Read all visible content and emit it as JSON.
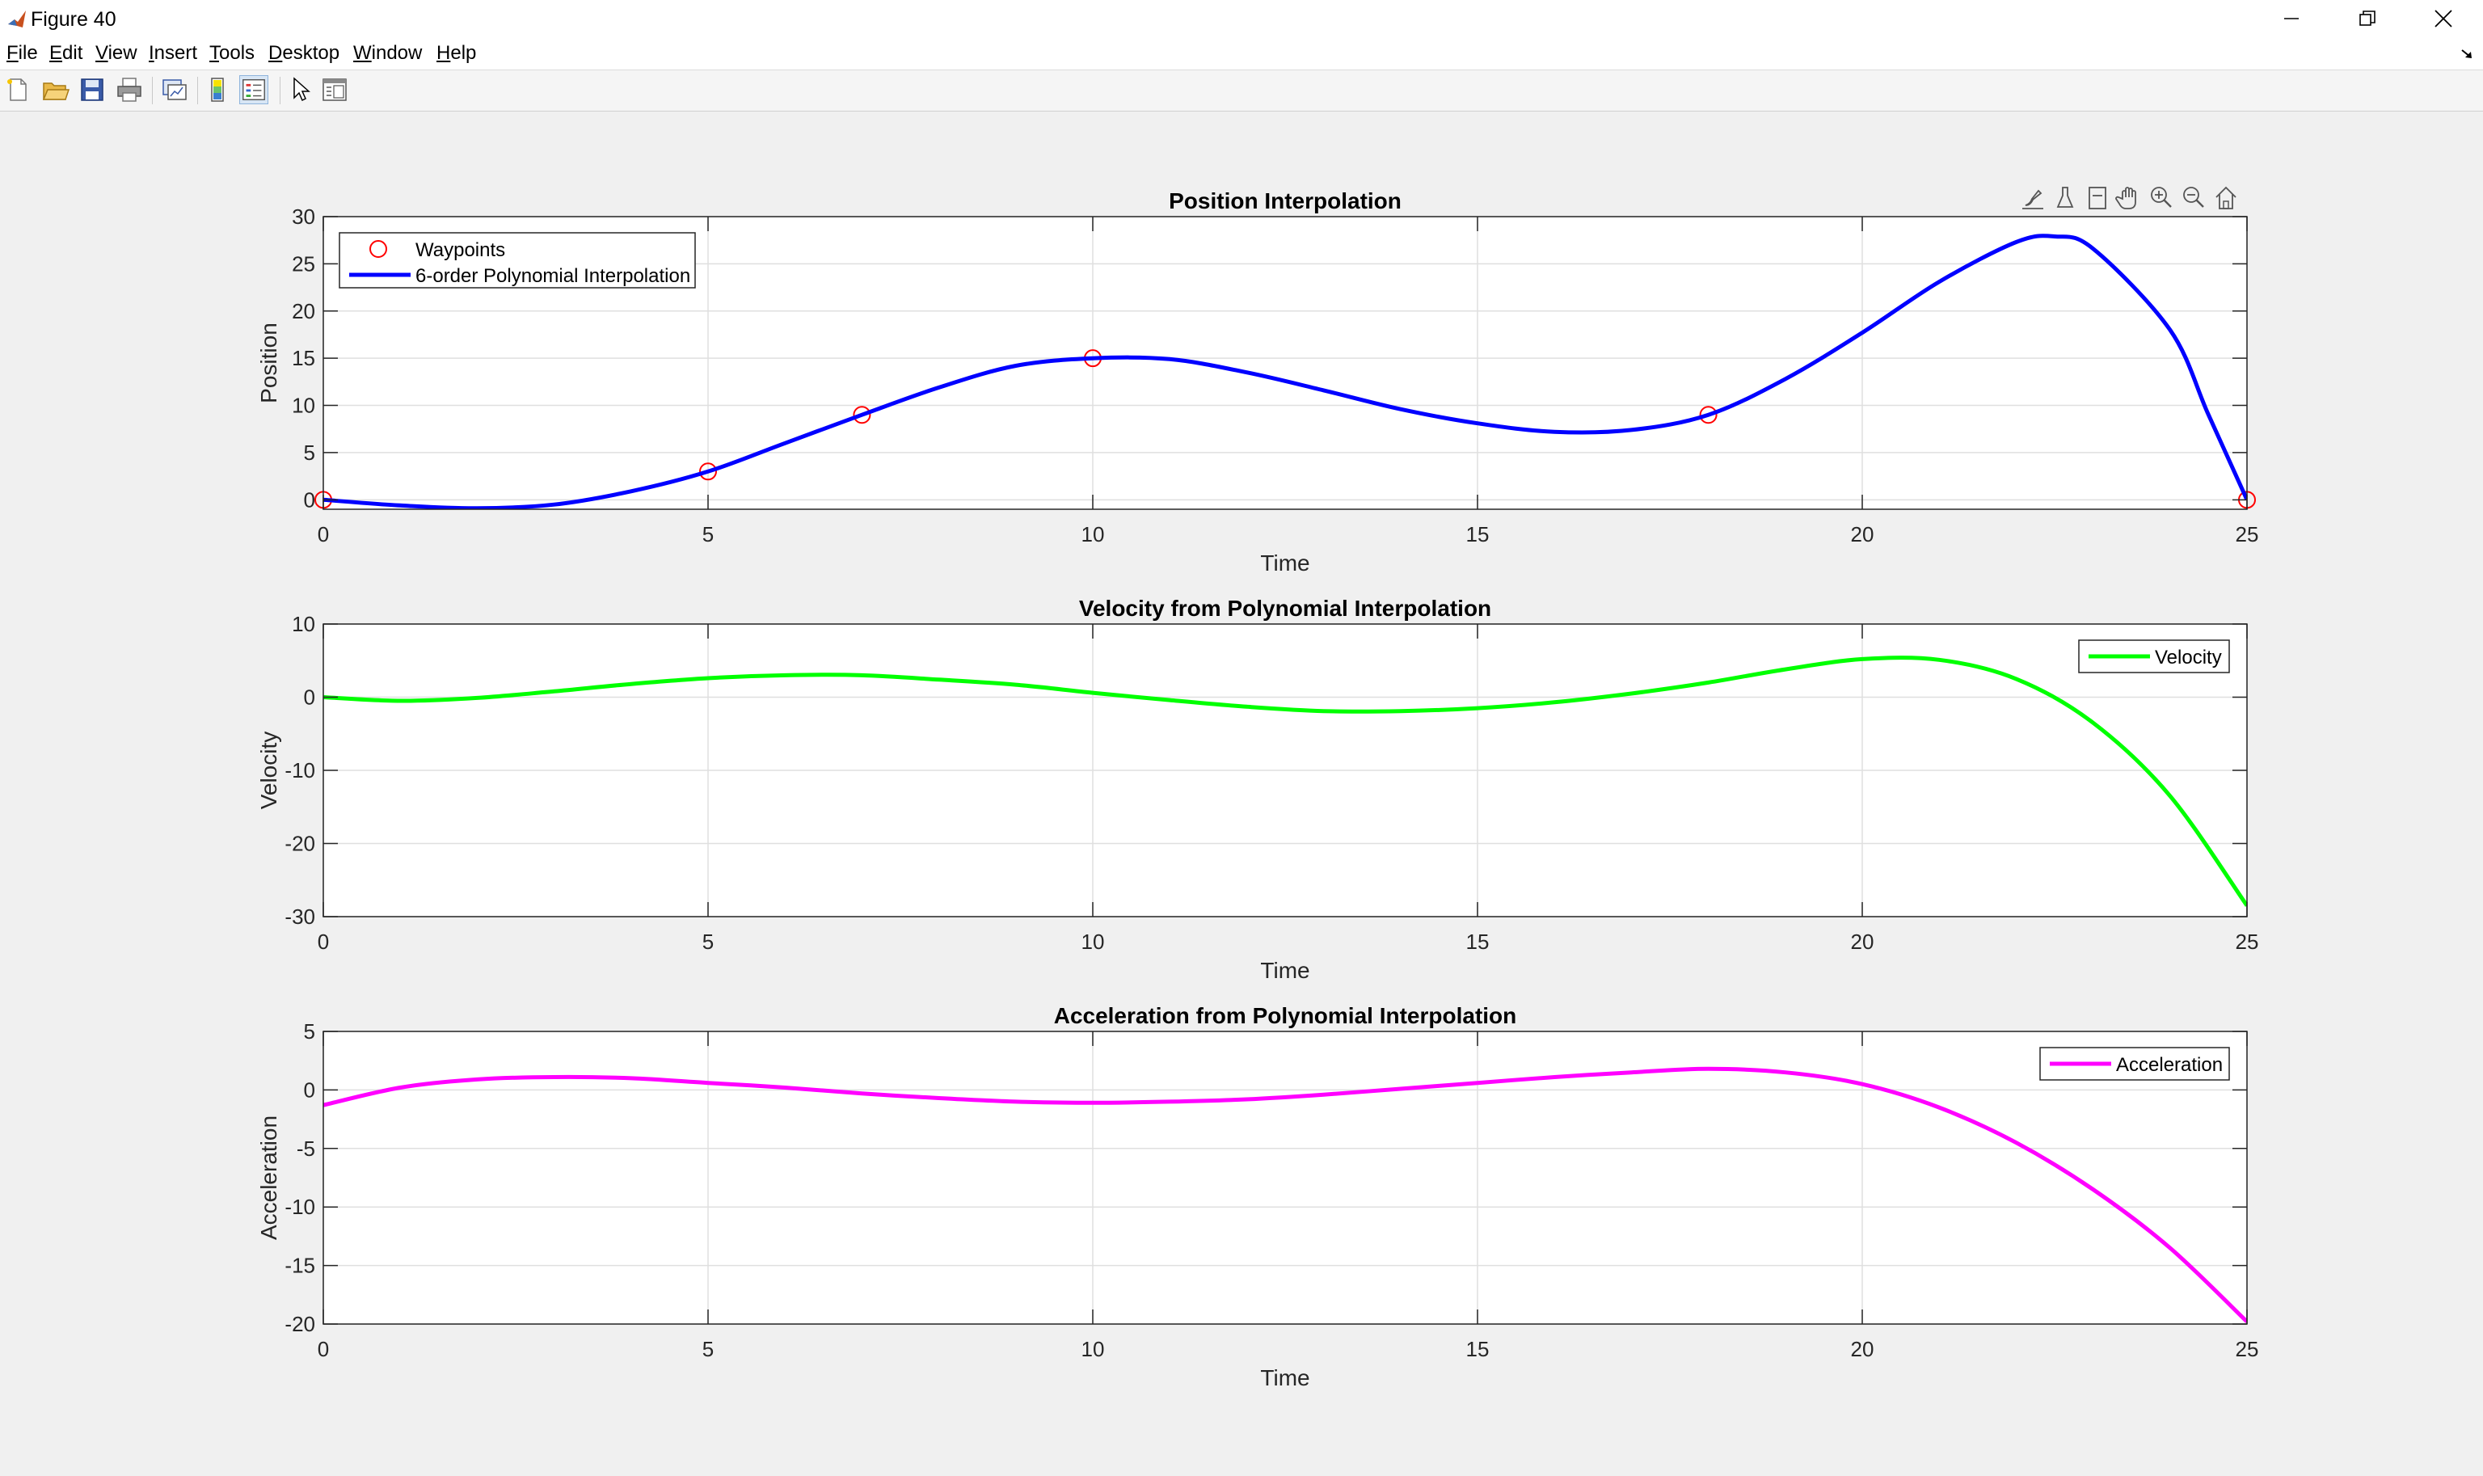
{
  "window": {
    "title": "Figure 40",
    "controls": {
      "minimize": "—",
      "maximize": "❐",
      "close": "✕"
    }
  },
  "menu": {
    "items": [
      {
        "label": "File",
        "accel": "F",
        "rest": "ile"
      },
      {
        "label": "Edit",
        "accel": "E",
        "rest": "dit"
      },
      {
        "label": "View",
        "accel": "V",
        "rest": "iew"
      },
      {
        "label": "Insert",
        "accel": "I",
        "rest": "nsert"
      },
      {
        "label": "Tools",
        "accel": "T",
        "rest": "ools"
      },
      {
        "label": "Desktop",
        "accel": "D",
        "rest": "esktop"
      },
      {
        "label": "Window",
        "accel": "W",
        "rest": "indow"
      },
      {
        "label": "Help",
        "accel": "H",
        "rest": "elp"
      }
    ]
  },
  "toolbar": {
    "icons": [
      "new-figure-icon",
      "open-file-icon",
      "save-icon",
      "print-icon",
      "link-plot-icon",
      "colorbar-icon",
      "legend-icon",
      "edit-plot-icon",
      "property-inspector-icon"
    ]
  },
  "axes_toolbar": {
    "icons": [
      "brush-data-icon",
      "data-tips-icon",
      "restore-view-icon",
      "pan-icon",
      "zoom-in-icon",
      "zoom-out-icon",
      "home-icon"
    ]
  },
  "colors": {
    "position": "#0000ff",
    "velocity": "#00ff00",
    "acceleration": "#ff00ff",
    "waypoint": "#ff0000"
  },
  "chart_data": [
    {
      "type": "line",
      "title": "Position Interpolation",
      "xlabel": "Time",
      "ylabel": "Position",
      "xlim": [
        0,
        25
      ],
      "ylim": [
        -1,
        30
      ],
      "xticks": [
        0,
        5,
        10,
        15,
        20,
        25
      ],
      "yticks": [
        0,
        5,
        10,
        15,
        20,
        25,
        30
      ],
      "grid": true,
      "legend_position": "top-left",
      "series": [
        {
          "name": "Waypoints",
          "marker": "circle",
          "color": "#ff0000",
          "x": [
            0,
            5,
            7,
            10,
            18,
            25
          ],
          "y": [
            0,
            3,
            9,
            15,
            9,
            0
          ]
        },
        {
          "name": "6-order Polynomial Interpolation",
          "color": "#0000ff",
          "x": [
            0,
            1,
            2,
            3,
            4,
            5,
            6,
            7,
            8,
            9,
            10,
            11,
            12,
            13,
            14,
            15,
            16,
            17,
            18,
            19,
            20,
            21,
            22,
            22.5,
            23,
            24,
            24.5,
            25
          ],
          "y": [
            0.0,
            -0.6,
            -0.9,
            -0.5,
            0.9,
            3.0,
            6.0,
            9.0,
            11.9,
            14.2,
            15.0,
            14.9,
            13.5,
            11.6,
            9.6,
            8.1,
            7.2,
            7.4,
            9.0,
            12.8,
            17.7,
            23.1,
            27.3,
            27.9,
            26.6,
            18.0,
            9.0,
            0.0
          ]
        }
      ]
    },
    {
      "type": "line",
      "title": "Velocity from Polynomial Interpolation",
      "xlabel": "Time",
      "ylabel": "Velocity",
      "xlim": [
        0,
        25
      ],
      "ylim": [
        -30,
        10
      ],
      "xticks": [
        0,
        5,
        10,
        15,
        20,
        25
      ],
      "yticks": [
        -30,
        -20,
        -10,
        0,
        10
      ],
      "grid": true,
      "legend_position": "top-right",
      "series": [
        {
          "name": "Velocity",
          "color": "#00ff00",
          "x": [
            0,
            1,
            2,
            3,
            4,
            5,
            6,
            7,
            8,
            9,
            10,
            11,
            12,
            13,
            14,
            15,
            16,
            17,
            18,
            19,
            20,
            21,
            22,
            23,
            24,
            25
          ],
          "y": [
            0.0,
            -0.5,
            -0.1,
            0.8,
            1.8,
            2.6,
            3.0,
            3.0,
            2.4,
            1.7,
            0.6,
            -0.4,
            -1.3,
            -1.9,
            -1.9,
            -1.5,
            -0.7,
            0.5,
            2.0,
            3.8,
            5.2,
            5.1,
            2.5,
            -3.5,
            -13.5,
            -28.5
          ]
        }
      ]
    },
    {
      "type": "line",
      "title": "Acceleration from Polynomial Interpolation",
      "xlabel": "Time",
      "ylabel": "Acceleration",
      "xlim": [
        0,
        25
      ],
      "ylim": [
        -20,
        5
      ],
      "xticks": [
        0,
        5,
        10,
        15,
        20,
        25
      ],
      "yticks": [
        -20,
        -15,
        -10,
        -5,
        0,
        5
      ],
      "grid": true,
      "legend_position": "top-right",
      "series": [
        {
          "name": "Acceleration",
          "color": "#ff00ff",
          "x": [
            0,
            1,
            2,
            3,
            4,
            5,
            6,
            7,
            8,
            9,
            10,
            11,
            12,
            13,
            14,
            15,
            16,
            17,
            18,
            19,
            20,
            21,
            22,
            23,
            24,
            25
          ],
          "y": [
            -1.3,
            0.2,
            0.9,
            1.1,
            1.0,
            0.6,
            0.2,
            -0.3,
            -0.7,
            -1.0,
            -1.1,
            -1.0,
            -0.8,
            -0.4,
            0.1,
            0.6,
            1.1,
            1.5,
            1.8,
            1.5,
            0.5,
            -1.5,
            -4.5,
            -8.5,
            -13.5,
            -19.8
          ]
        }
      ]
    }
  ]
}
